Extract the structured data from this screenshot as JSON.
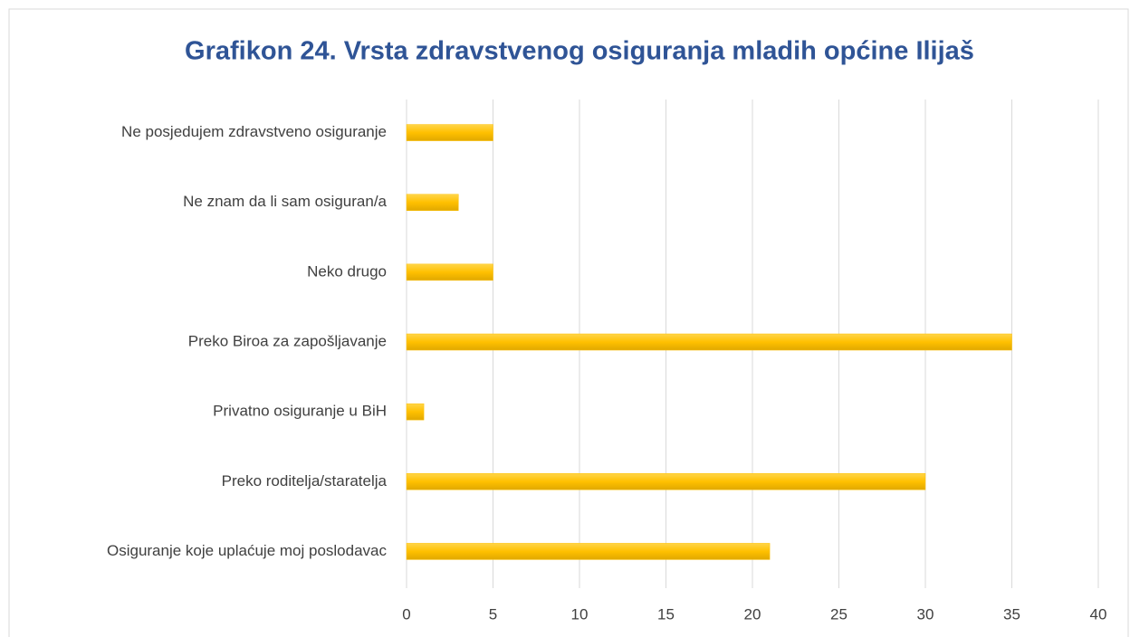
{
  "chart_data": {
    "type": "hbar",
    "title": "Grafikon 24. Vrsta zdravstvenog osiguranja mladih općine Ilijaš",
    "categories": [
      "Ne posjedujem zdravstveno osiguranje",
      "Ne znam da li sam osiguran/a",
      "Neko drugo",
      "Preko Biroa za zapošljavanje",
      "Privatno osiguranje u BiH",
      "Preko roditelja/staratelja",
      "Osiguranje koje uplaćuje moj poslodavac"
    ],
    "values": [
      5,
      3,
      5,
      35,
      1,
      30,
      21
    ],
    "color": "#ffc000",
    "xlim": [
      0,
      40
    ],
    "xticks": [
      0,
      5,
      10,
      15,
      20,
      25,
      30,
      35,
      40
    ],
    "grid": true
  }
}
